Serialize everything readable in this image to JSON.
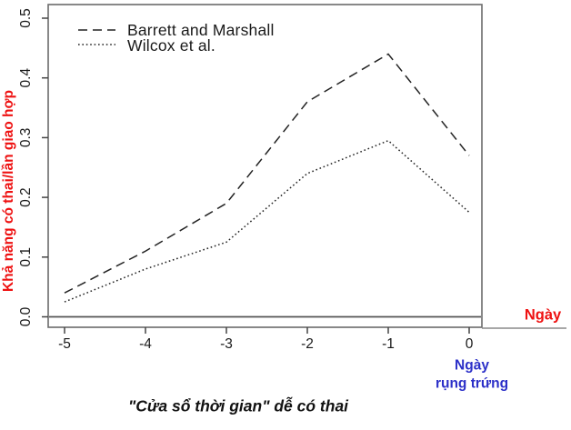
{
  "figure": {
    "y_axis_title": "Khả năng có thai/lần giao hợp",
    "x_axis_title": "Ngày",
    "ovulation_label_line1": "Ngày",
    "ovulation_label_line2": "rụng trứng",
    "caption": "\"Cửa sổ thời gian\" dễ có thai",
    "colors": {
      "y_axis_title_red": "#ee1111",
      "x_axis_title_red": "#ee1111",
      "ovulation_blue": "#2b2fc8",
      "line_black": "#222222",
      "frame_gray": "#6b6b6b",
      "tick_gray": "#444444"
    }
  },
  "chart_data": {
    "type": "line",
    "x": [
      -5,
      -4,
      -3,
      -2,
      -1,
      0
    ],
    "xticks": [
      "-5",
      "-4",
      "-3",
      "-2",
      "-1",
      "0"
    ],
    "yticks": [
      "0.0",
      "0.1",
      "0.2",
      "0.3",
      "0.4",
      "0.5"
    ],
    "ytick_values": [
      0,
      0.1,
      0.2,
      0.3,
      0.4,
      0.5
    ],
    "xlim": [
      -5.2,
      0.15
    ],
    "ylim": [
      0,
      0.52
    ],
    "xlabel": "Ngày",
    "ylabel": "Khả năng có thai/lần giao hợp",
    "grid": false,
    "zero_line": true,
    "legend_position": "top-left",
    "series": [
      {
        "name": "Barrett and Marshall",
        "style": "dashed",
        "values": [
          0.04,
          0.11,
          0.19,
          0.36,
          0.44,
          0.27
        ]
      },
      {
        "name": "Wilcox et al.",
        "style": "dotted",
        "values": [
          0.025,
          0.08,
          0.125,
          0.24,
          0.295,
          0.175
        ]
      }
    ]
  }
}
